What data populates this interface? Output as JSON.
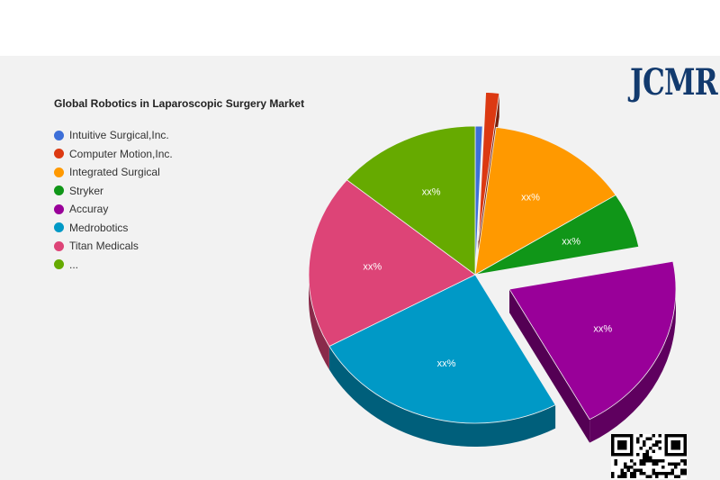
{
  "brand": {
    "logo_text": "JCMR"
  },
  "chart_data": {
    "type": "pie",
    "title": "Global Robotics in Laparoscopic Surgery Market",
    "legend_position": "left",
    "slices": [
      {
        "name": "Intuitive Surgical,Inc.",
        "value": 0.7,
        "label": "",
        "color": "#3d6fd8",
        "explode": false
      },
      {
        "name": "Computer Motion,Inc.",
        "value": 1.3,
        "label": "",
        "color": "#dc3912",
        "explode": true
      },
      {
        "name": "Integrated Surgical",
        "value": 14,
        "label": "xx%",
        "color": "#ff9900",
        "explode": false
      },
      {
        "name": "Stryker",
        "value": 6,
        "label": "xx%",
        "color": "#109618",
        "explode": false
      },
      {
        "name": "Accuray",
        "value": 20,
        "label": "xx%",
        "color": "#990099",
        "explode": true
      },
      {
        "name": "Medrobotics",
        "value": 25,
        "label": "xx%",
        "color": "#0099c6",
        "explode": false
      },
      {
        "name": "Titan Medicals",
        "value": 19,
        "label": "xx%",
        "color": "#dd4477",
        "explode": false
      },
      {
        "name": "...",
        "value": 14,
        "label": "xx%",
        "color": "#66aa00",
        "explode": false
      }
    ]
  }
}
